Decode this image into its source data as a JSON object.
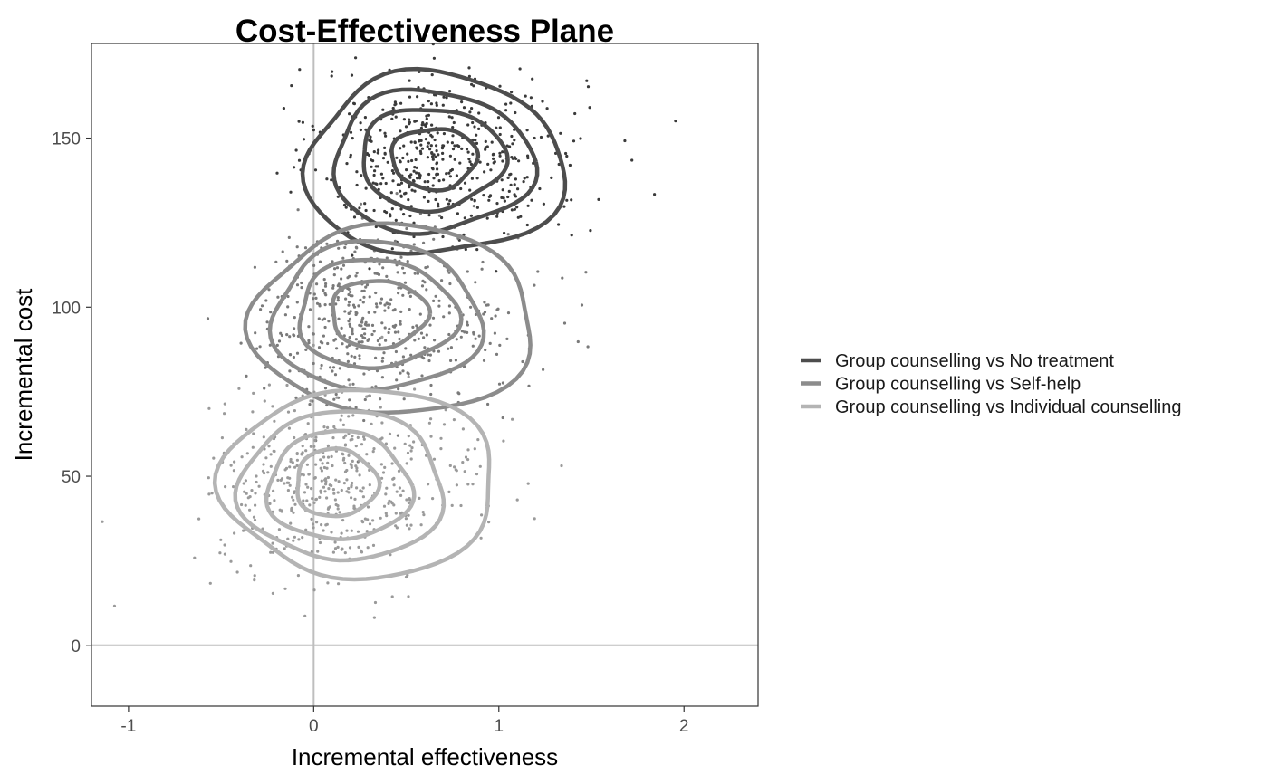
{
  "chart_data": {
    "type": "scatter",
    "title": "Cost-Effectiveness Plane",
    "xlabel": "Incremental effectiveness",
    "ylabel": "Incremental cost",
    "xlim": [
      -1.2,
      2.4
    ],
    "ylim": [
      -18,
      178
    ],
    "x_ticks": [
      -1,
      0,
      1,
      2
    ],
    "x_tick_labels": [
      "-1",
      "0",
      "1",
      "2"
    ],
    "y_ticks": [
      0,
      50,
      100,
      150
    ],
    "y_tick_labels": [
      "0",
      "50",
      "100",
      "150"
    ],
    "grid": false,
    "reference_lines": {
      "x": 0,
      "y": 0,
      "color": "#bebebe"
    },
    "legend": {
      "placement": "right"
    },
    "series": [
      {
        "name": "Group counselling vs No treatment",
        "color": "#4d4d4d",
        "point_color": "#3a3a3a",
        "mean": [
          0.65,
          145
        ],
        "sd": [
          0.3,
          13
        ],
        "n_points": 520,
        "contours": [
          {
            "rx": 0.23,
            "ry": 9,
            "cx": 0.65,
            "cy": 144
          },
          {
            "rx": 0.38,
            "ry": 15,
            "cx": 0.63,
            "cy": 144
          },
          {
            "rx": 0.52,
            "ry": 21,
            "cx": 0.62,
            "cy": 143
          },
          {
            "rx": 0.66,
            "ry": 27,
            "cx": 0.62,
            "cy": 142
          }
        ]
      },
      {
        "name": "Group counselling vs Self-help",
        "color": "#8c8c8c",
        "point_color": "#7a7a7a",
        "mean": [
          0.3,
          97
        ],
        "sd": [
          0.3,
          13
        ],
        "n_points": 520,
        "contours": [
          {
            "rx": 0.26,
            "ry": 10,
            "cx": 0.35,
            "cy": 98
          },
          {
            "rx": 0.42,
            "ry": 16,
            "cx": 0.33,
            "cy": 98
          },
          {
            "rx": 0.54,
            "ry": 22,
            "cx": 0.32,
            "cy": 97
          },
          {
            "rx": 0.72,
            "ry": 28,
            "cx": 0.4,
            "cy": 96
          }
        ]
      },
      {
        "name": "Group counselling vs Individual counselling",
        "color": "#b4b4b4",
        "point_color": "#9a9a9a",
        "mean": [
          0.1,
          48
        ],
        "sd": [
          0.3,
          13
        ],
        "n_points": 520,
        "contours": [
          {
            "rx": 0.22,
            "ry": 10,
            "cx": 0.12,
            "cy": 48
          },
          {
            "rx": 0.38,
            "ry": 16,
            "cx": 0.13,
            "cy": 47
          },
          {
            "rx": 0.53,
            "ry": 22,
            "cx": 0.14,
            "cy": 47
          },
          {
            "rx": 0.7,
            "ry": 28,
            "cx": 0.22,
            "cy": 48
          }
        ]
      }
    ]
  }
}
